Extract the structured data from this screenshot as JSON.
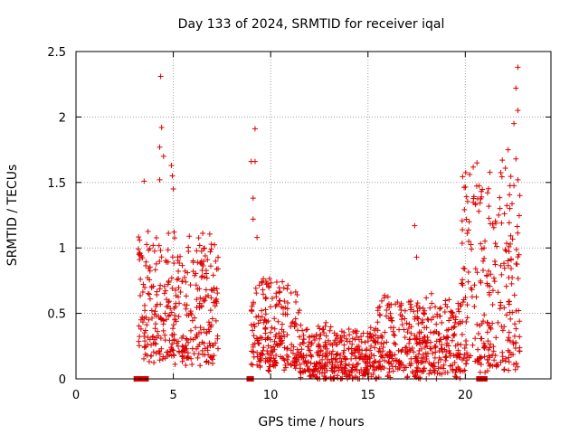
{
  "chart_data": {
    "type": "scatter",
    "title": "Day 133 of 2024, SRMTID for receiver iqal",
    "xlabel": "GPS time / hours",
    "ylabel": "SRMTID / TECUs",
    "xlim": [
      0,
      24.4
    ],
    "ylim": [
      0,
      2.5
    ],
    "xticks": [
      0,
      5,
      10,
      15,
      20
    ],
    "yticks": [
      0,
      0.5,
      1,
      1.5,
      2,
      2.5
    ],
    "ytick_labels": [
      "0",
      "0.5",
      "1",
      "1.5",
      "2",
      "2.5"
    ],
    "grid": true,
    "marker": "plus",
    "color": "#dd0000",
    "series": [
      {
        "name": "SRMTID",
        "segments": [
          {
            "x_start": 3.2,
            "x_end": 7.3,
            "y_min": 0.15,
            "y_max": 1.1
          },
          {
            "x_start": 9.0,
            "x_end": 11.5,
            "y_min": 0.1,
            "y_max": 0.75
          },
          {
            "x_start": 11.5,
            "x_end": 15.5,
            "y_min": 0.02,
            "y_max": 0.4
          },
          {
            "x_start": 15.5,
            "x_end": 19.8,
            "y_min": 0.05,
            "y_max": 0.6
          },
          {
            "x_start": 19.8,
            "x_end": 22.8,
            "y_min": 0.1,
            "y_max": 1.6
          }
        ],
        "highlights": [
          {
            "x": 4.35,
            "y": 2.31
          },
          {
            "x": 4.4,
            "y": 1.92
          },
          {
            "x": 4.3,
            "y": 1.77
          },
          {
            "x": 4.5,
            "y": 1.7
          },
          {
            "x": 4.9,
            "y": 1.63
          },
          {
            "x": 4.95,
            "y": 1.55
          },
          {
            "x": 3.5,
            "y": 1.51
          },
          {
            "x": 4.3,
            "y": 1.52
          },
          {
            "x": 5.0,
            "y": 1.45
          },
          {
            "x": 9.2,
            "y": 1.91
          },
          {
            "x": 9.0,
            "y": 1.66
          },
          {
            "x": 9.2,
            "y": 1.66
          },
          {
            "x": 9.1,
            "y": 1.38
          },
          {
            "x": 9.1,
            "y": 1.22
          },
          {
            "x": 9.3,
            "y": 1.08
          },
          {
            "x": 17.4,
            "y": 1.17
          },
          {
            "x": 17.5,
            "y": 0.93
          },
          {
            "x": 20.2,
            "y": 1.2
          },
          {
            "x": 20.6,
            "y": 1.65
          },
          {
            "x": 22.7,
            "y": 2.38
          },
          {
            "x": 22.6,
            "y": 2.22
          },
          {
            "x": 22.7,
            "y": 2.05
          },
          {
            "x": 22.5,
            "y": 1.95
          },
          {
            "x": 22.2,
            "y": 1.75
          },
          {
            "x": 21.9,
            "y": 1.67
          },
          {
            "x": 22.6,
            "y": 1.68
          },
          {
            "x": 22.7,
            "y": 1.52
          },
          {
            "x": 22.8,
            "y": 1.4
          }
        ],
        "zero_points_x": [
          3.1,
          3.25,
          3.5,
          3.6,
          8.9,
          9.0,
          20.7,
          20.8,
          20.9,
          21.0
        ]
      }
    ]
  }
}
